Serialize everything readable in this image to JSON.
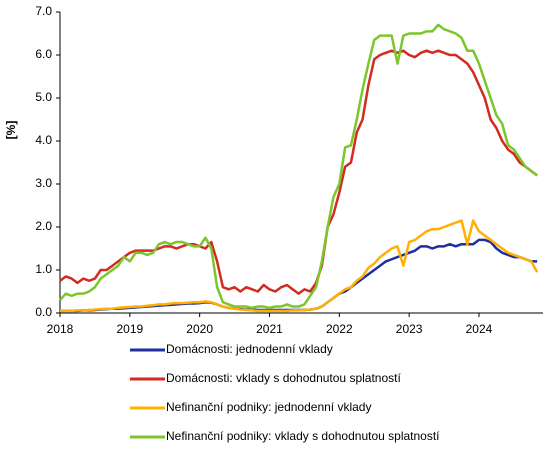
{
  "chart_data": {
    "type": "line",
    "y_label": "[%]",
    "x": [
      2018,
      2018.083,
      2018.167,
      2018.25,
      2018.333,
      2018.417,
      2018.5,
      2018.583,
      2018.667,
      2018.75,
      2018.833,
      2018.917,
      2019,
      2019.083,
      2019.167,
      2019.25,
      2019.333,
      2019.417,
      2019.5,
      2019.583,
      2019.667,
      2019.75,
      2019.833,
      2019.917,
      2020,
      2020.083,
      2020.167,
      2020.25,
      2020.333,
      2020.417,
      2020.5,
      2020.583,
      2020.667,
      2020.75,
      2020.833,
      2020.917,
      2021,
      2021.083,
      2021.167,
      2021.25,
      2021.333,
      2021.417,
      2021.5,
      2021.583,
      2021.667,
      2021.75,
      2021.833,
      2021.917,
      2022,
      2022.083,
      2022.167,
      2022.25,
      2022.333,
      2022.417,
      2022.5,
      2022.583,
      2022.667,
      2022.75,
      2022.833,
      2022.917,
      2023,
      2023.083,
      2023.167,
      2023.25,
      2023.333,
      2023.417,
      2023.5,
      2023.583,
      2023.667,
      2023.75,
      2023.833,
      2023.917,
      2024,
      2024.083,
      2024.167,
      2024.25,
      2024.333,
      2024.417,
      2024.5,
      2024.583,
      2024.667,
      2024.75,
      2024.833
    ],
    "series": [
      {
        "name": "Domácnosti: jednodenní vklady",
        "color": "#1f2f9e",
        "values": [
          0.05,
          0.05,
          0.05,
          0.05,
          0.06,
          0.06,
          0.07,
          0.08,
          0.09,
          0.1,
          0.1,
          0.11,
          0.12,
          0.13,
          0.14,
          0.15,
          0.16,
          0.17,
          0.18,
          0.19,
          0.2,
          0.21,
          0.22,
          0.22,
          0.23,
          0.25,
          0.24,
          0.2,
          0.15,
          0.12,
          0.1,
          0.09,
          0.08,
          0.08,
          0.07,
          0.07,
          0.07,
          0.07,
          0.07,
          0.07,
          0.07,
          0.07,
          0.07,
          0.08,
          0.1,
          0.15,
          0.25,
          0.35,
          0.45,
          0.5,
          0.6,
          0.7,
          0.8,
          0.9,
          1.0,
          1.1,
          1.2,
          1.25,
          1.3,
          1.35,
          1.4,
          1.45,
          1.55,
          1.55,
          1.5,
          1.55,
          1.55,
          1.6,
          1.55,
          1.6,
          1.6,
          1.6,
          1.7,
          1.7,
          1.65,
          1.5,
          1.4,
          1.35,
          1.3,
          1.3,
          1.25,
          1.2,
          1.2
        ]
      },
      {
        "name": "Domácnosti: vklady s dohodnutou splatností",
        "color": "#d22b1f",
        "values": [
          0.75,
          0.85,
          0.8,
          0.7,
          0.8,
          0.75,
          0.8,
          1.0,
          1.0,
          1.1,
          1.2,
          1.3,
          1.4,
          1.45,
          1.45,
          1.45,
          1.45,
          1.5,
          1.55,
          1.55,
          1.5,
          1.55,
          1.6,
          1.6,
          1.55,
          1.5,
          1.65,
          1.2,
          0.6,
          0.55,
          0.6,
          0.5,
          0.6,
          0.55,
          0.5,
          0.65,
          0.55,
          0.5,
          0.6,
          0.65,
          0.55,
          0.45,
          0.55,
          0.5,
          0.7,
          1.1,
          2.0,
          2.3,
          2.8,
          3.4,
          3.5,
          4.2,
          4.5,
          5.3,
          5.9,
          6.0,
          6.05,
          6.1,
          6.05,
          6.1,
          6.0,
          5.95,
          6.05,
          6.1,
          6.05,
          6.1,
          6.05,
          6.0,
          6.0,
          5.9,
          5.8,
          5.6,
          5.3,
          5.0,
          4.5,
          4.3,
          4.0,
          3.8,
          3.7,
          3.5,
          3.4,
          3.3,
          3.2
        ]
      },
      {
        "name": "Nefinanční podniky: jednodenní vklady",
        "color": "#ffb000",
        "values": [
          0.05,
          0.05,
          0.05,
          0.06,
          0.06,
          0.07,
          0.08,
          0.09,
          0.1,
          0.1,
          0.12,
          0.13,
          0.14,
          0.15,
          0.15,
          0.17,
          0.18,
          0.2,
          0.2,
          0.22,
          0.23,
          0.23,
          0.24,
          0.25,
          0.25,
          0.27,
          0.25,
          0.2,
          0.15,
          0.12,
          0.1,
          0.08,
          0.07,
          0.06,
          0.05,
          0.05,
          0.05,
          0.05,
          0.05,
          0.05,
          0.06,
          0.06,
          0.07,
          0.08,
          0.1,
          0.15,
          0.25,
          0.35,
          0.45,
          0.55,
          0.6,
          0.75,
          0.85,
          1.05,
          1.15,
          1.3,
          1.4,
          1.5,
          1.55,
          1.1,
          1.65,
          1.7,
          1.8,
          1.9,
          1.95,
          1.95,
          2.0,
          2.05,
          2.1,
          2.15,
          1.6,
          2.15,
          1.9,
          1.8,
          1.7,
          1.6,
          1.5,
          1.4,
          1.35,
          1.3,
          1.25,
          1.2,
          0.95
        ]
      },
      {
        "name": "Nefinanční podniky: vklady s dohodnutou splatností",
        "color": "#7cc62c",
        "values": [
          0.3,
          0.45,
          0.4,
          0.45,
          0.45,
          0.5,
          0.6,
          0.8,
          0.9,
          1.0,
          1.1,
          1.3,
          1.2,
          1.4,
          1.4,
          1.35,
          1.4,
          1.6,
          1.65,
          1.6,
          1.65,
          1.65,
          1.6,
          1.55,
          1.55,
          1.75,
          1.5,
          0.6,
          0.25,
          0.2,
          0.15,
          0.15,
          0.15,
          0.12,
          0.15,
          0.15,
          0.12,
          0.15,
          0.15,
          0.2,
          0.15,
          0.15,
          0.2,
          0.4,
          0.6,
          1.2,
          2.0,
          2.7,
          3.0,
          3.85,
          3.9,
          4.5,
          5.2,
          5.8,
          6.35,
          6.45,
          6.45,
          6.45,
          5.8,
          6.45,
          6.5,
          6.5,
          6.5,
          6.55,
          6.55,
          6.7,
          6.6,
          6.55,
          6.5,
          6.4,
          6.1,
          6.1,
          5.8,
          5.4,
          5.0,
          4.6,
          4.4,
          3.9,
          3.8,
          3.6,
          3.4,
          3.3,
          3.2
        ]
      }
    ],
    "xlim": [
      2018,
      2024.917
    ],
    "xticks": [
      2018,
      2019,
      2020,
      2021,
      2022,
      2023,
      2024
    ],
    "ylim": [
      0,
      7
    ],
    "yticks": [
      {
        "value": 0,
        "label": "0.0"
      },
      {
        "value": 1,
        "label": "1.0"
      },
      {
        "value": 2,
        "label": "2.0"
      },
      {
        "value": 3,
        "label": "3.0"
      },
      {
        "value": 4,
        "label": "4.0"
      },
      {
        "value": 5,
        "label": "5.0"
      },
      {
        "value": 6,
        "label": "6.0"
      },
      {
        "value": 7,
        "label": "7.0"
      }
    ],
    "grid": false
  }
}
